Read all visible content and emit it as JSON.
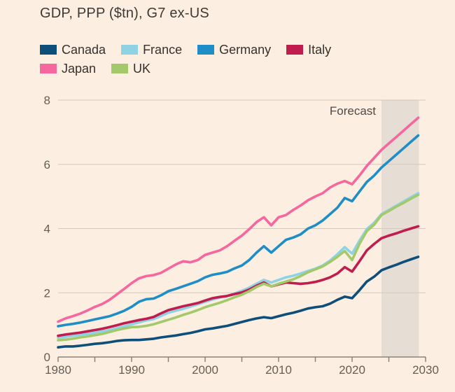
{
  "title": "GDP, PPP ($tn), G7 ex-US",
  "forecast_label": "Forecast",
  "colors": {
    "background": "#fcefe1",
    "grid": "#d3c8bb",
    "axis": "#8e8276",
    "tick_label": "#655e55",
    "forecast_band": "#e6ded5",
    "forecast_label": "#4f4a44",
    "title_text": "#3e3933"
  },
  "chart_data": {
    "type": "line",
    "title": "GDP, PPP ($tn), G7 ex-US",
    "xlabel": "",
    "ylabel": "GDP, PPP ($tn)",
    "x_range": [
      1980,
      2030
    ],
    "x_tick_labels": [
      1980,
      1990,
      2000,
      2010,
      2020,
      2030
    ],
    "x_minor_tick_step": 5,
    "ylim": [
      0,
      8
    ],
    "y_ticks": [
      0,
      2,
      4,
      6,
      8
    ],
    "grid": "horizontal",
    "legend_position": "top",
    "legend_rows": [
      4,
      2
    ],
    "forecast_band": {
      "label": "Forecast",
      "start": 2024,
      "end": 2029.1
    },
    "years": [
      1980,
      1981,
      1982,
      1983,
      1984,
      1985,
      1986,
      1987,
      1988,
      1989,
      1990,
      1991,
      1992,
      1993,
      1994,
      1995,
      1996,
      1997,
      1998,
      1999,
      2000,
      2001,
      2002,
      2003,
      2004,
      2005,
      2006,
      2007,
      2008,
      2009,
      2010,
      2011,
      2012,
      2013,
      2014,
      2015,
      2016,
      2017,
      2018,
      2019,
      2020,
      2021,
      2022,
      2023,
      2024,
      2025,
      2026,
      2027,
      2028,
      2029
    ],
    "series": [
      {
        "name": "Canada",
        "color": "#0d4e7a",
        "values": [
          0.3,
          0.33,
          0.33,
          0.35,
          0.38,
          0.41,
          0.43,
          0.46,
          0.5,
          0.52,
          0.53,
          0.53,
          0.55,
          0.57,
          0.61,
          0.64,
          0.67,
          0.71,
          0.75,
          0.8,
          0.86,
          0.89,
          0.93,
          0.97,
          1.03,
          1.09,
          1.15,
          1.2,
          1.24,
          1.21,
          1.27,
          1.33,
          1.38,
          1.44,
          1.51,
          1.55,
          1.58,
          1.66,
          1.78,
          1.88,
          1.83,
          2.08,
          2.35,
          2.5,
          2.7,
          2.79,
          2.87,
          2.96,
          3.04,
          3.12
        ]
      },
      {
        "name": "France",
        "color": "#8ed2e4",
        "values": [
          0.6,
          0.63,
          0.66,
          0.69,
          0.72,
          0.76,
          0.8,
          0.84,
          0.9,
          0.96,
          1.02,
          1.08,
          1.14,
          1.18,
          1.28,
          1.38,
          1.44,
          1.5,
          1.57,
          1.64,
          1.72,
          1.79,
          1.85,
          1.9,
          1.98,
          2.06,
          2.16,
          2.28,
          2.4,
          2.32,
          2.4,
          2.48,
          2.53,
          2.6,
          2.68,
          2.75,
          2.85,
          3.0,
          3.2,
          3.42,
          3.22,
          3.62,
          3.98,
          4.18,
          4.45,
          4.58,
          4.71,
          4.84,
          4.97,
          5.1
        ]
      },
      {
        "name": "Germany",
        "color": "#1f8dc6",
        "values": [
          0.96,
          1.0,
          1.03,
          1.07,
          1.12,
          1.17,
          1.22,
          1.27,
          1.35,
          1.44,
          1.56,
          1.72,
          1.8,
          1.82,
          1.92,
          2.05,
          2.12,
          2.2,
          2.28,
          2.36,
          2.48,
          2.56,
          2.6,
          2.65,
          2.76,
          2.85,
          3.02,
          3.25,
          3.45,
          3.25,
          3.45,
          3.65,
          3.72,
          3.82,
          4.0,
          4.1,
          4.25,
          4.45,
          4.65,
          4.95,
          4.85,
          5.15,
          5.45,
          5.65,
          5.9,
          6.1,
          6.3,
          6.5,
          6.7,
          6.9
        ]
      },
      {
        "name": "Italy",
        "color": "#c01d4e",
        "values": [
          0.66,
          0.7,
          0.73,
          0.76,
          0.8,
          0.84,
          0.88,
          0.93,
          0.99,
          1.05,
          1.1,
          1.15,
          1.19,
          1.25,
          1.36,
          1.46,
          1.52,
          1.58,
          1.63,
          1.68,
          1.76,
          1.83,
          1.87,
          1.9,
          1.96,
          2.01,
          2.1,
          2.22,
          2.32,
          2.2,
          2.26,
          2.32,
          2.3,
          2.28,
          2.3,
          2.34,
          2.4,
          2.48,
          2.6,
          2.8,
          2.66,
          2.98,
          3.32,
          3.52,
          3.7,
          3.78,
          3.85,
          3.93,
          4.0,
          4.07
        ]
      },
      {
        "name": "Japan",
        "color": "#f5679e",
        "values": [
          1.1,
          1.2,
          1.27,
          1.35,
          1.45,
          1.56,
          1.65,
          1.78,
          1.95,
          2.12,
          2.3,
          2.45,
          2.52,
          2.55,
          2.62,
          2.75,
          2.88,
          2.98,
          2.95,
          3.02,
          3.18,
          3.25,
          3.32,
          3.45,
          3.62,
          3.78,
          3.98,
          4.2,
          4.35,
          4.1,
          4.35,
          4.42,
          4.58,
          4.72,
          4.88,
          5.0,
          5.1,
          5.28,
          5.4,
          5.48,
          5.38,
          5.65,
          5.95,
          6.2,
          6.45,
          6.65,
          6.85,
          7.05,
          7.25,
          7.45
        ]
      },
      {
        "name": "UK",
        "color": "#a3c96a",
        "values": [
          0.52,
          0.54,
          0.57,
          0.61,
          0.64,
          0.68,
          0.72,
          0.78,
          0.84,
          0.89,
          0.93,
          0.94,
          0.97,
          1.02,
          1.09,
          1.16,
          1.23,
          1.31,
          1.38,
          1.46,
          1.55,
          1.62,
          1.69,
          1.77,
          1.86,
          1.94,
          2.05,
          2.18,
          2.28,
          2.2,
          2.28,
          2.35,
          2.42,
          2.52,
          2.64,
          2.73,
          2.82,
          2.96,
          3.12,
          3.3,
          3.02,
          3.52,
          3.92,
          4.12,
          4.42,
          4.55,
          4.68,
          4.8,
          4.93,
          5.05
        ]
      }
    ]
  }
}
